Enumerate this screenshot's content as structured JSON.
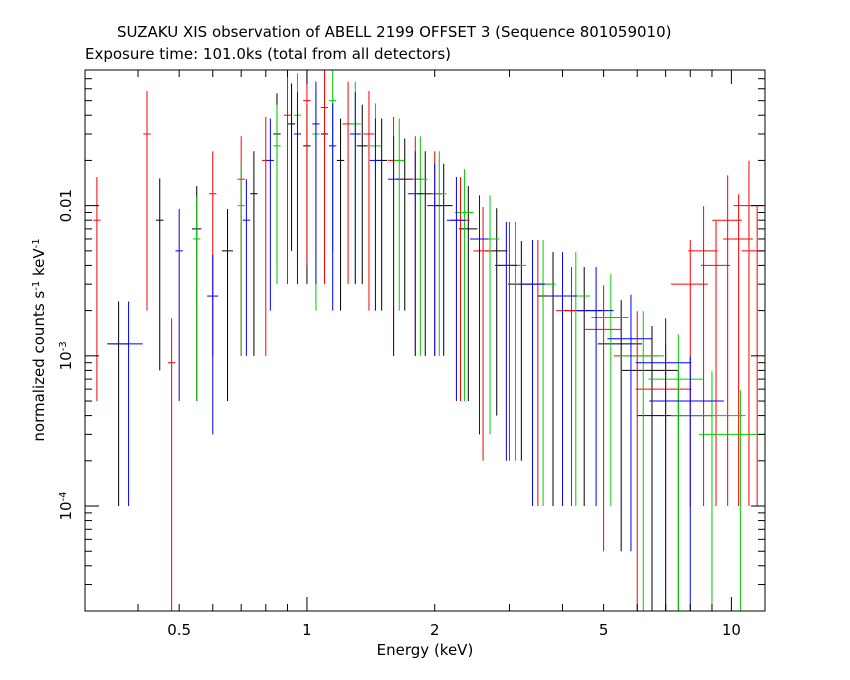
{
  "header": {
    "title": "SUZAKU XIS observation of ABELL 2199 OFFSET 3 (Sequence 801059010)",
    "subtitle": "Exposure time: 101.0ks (total from all detectors)"
  },
  "chart_data": {
    "type": "scatter",
    "title": "SUZAKU XIS observation of ABELL 2199 OFFSET 3 (Sequence 801059010)",
    "subtitle": "Exposure time: 101.0ks (total from all detectors)",
    "xlabel": "Energy (keV)",
    "ylabel": "normalized counts s^-1 keV^-1",
    "xscale": "log",
    "yscale": "log",
    "xlim": [
      0.3,
      12
    ],
    "ylim": [
      2e-05,
      0.08
    ],
    "x_ticks": [
      {
        "value": 0.5,
        "label": "0.5"
      },
      {
        "value": 1,
        "label": "1"
      },
      {
        "value": 2,
        "label": "2"
      },
      {
        "value": 5,
        "label": "5"
      },
      {
        "value": 10,
        "label": "10"
      }
    ],
    "y_ticks": [
      {
        "value": 0.0001,
        "label": "10^-4"
      },
      {
        "value": 0.001,
        "label": "10^-3"
      },
      {
        "value": 0.01,
        "label": "0.01"
      }
    ],
    "series": [
      {
        "color": "#000000",
        "points": [
          [
            0.36,
            0.0012,
            0.06,
            0.0011
          ],
          [
            0.45,
            0.008,
            0.02,
            0.0072
          ],
          [
            0.55,
            0.007,
            0.025,
            0.0065
          ],
          [
            0.65,
            0.005,
            0.03,
            0.0045
          ],
          [
            0.75,
            0.012,
            0.02,
            0.011
          ],
          [
            0.85,
            0.03,
            0.02,
            0.026
          ],
          [
            0.92,
            0.035,
            0.02,
            0.03
          ],
          [
            1.0,
            0.025,
            0.02,
            0.022
          ],
          [
            1.1,
            0.03,
            0.02,
            0.027
          ],
          [
            1.2,
            0.02,
            0.02,
            0.018
          ],
          [
            1.35,
            0.025,
            0.03,
            0.022
          ],
          [
            1.5,
            0.02,
            0.03,
            0.018
          ],
          [
            1.7,
            0.015,
            0.04,
            0.013
          ],
          [
            1.9,
            0.012,
            0.04,
            0.011
          ],
          [
            2.1,
            0.01,
            0.05,
            0.009
          ],
          [
            2.4,
            0.007,
            0.05,
            0.0065
          ],
          [
            2.8,
            0.005,
            0.06,
            0.0046
          ],
          [
            3.2,
            0.003,
            0.07,
            0.0028
          ],
          [
            3.8,
            0.0025,
            0.08,
            0.0024
          ],
          [
            4.5,
            0.002,
            0.1,
            0.0019
          ],
          [
            5.5,
            0.0012,
            0.12,
            0.00115
          ],
          [
            6.5,
            0.0008,
            0.15,
            0.00078
          ],
          [
            7.5,
            0.0004,
            0.2,
            0.00039
          ]
        ]
      },
      {
        "color": "#ff0000",
        "points": [
          [
            0.32,
            0.008,
            0.02,
            0.0075
          ],
          [
            0.42,
            0.03,
            0.02,
            0.028
          ],
          [
            0.48,
            0.0009,
            0.02,
            0.00088
          ],
          [
            0.6,
            0.012,
            0.02,
            0.011
          ],
          [
            0.7,
            0.015,
            0.02,
            0.014
          ],
          [
            0.8,
            0.02,
            0.02,
            0.019
          ],
          [
            0.9,
            0.04,
            0.02,
            0.037
          ],
          [
            1.0,
            0.05,
            0.02,
            0.046
          ],
          [
            1.1,
            0.045,
            0.02,
            0.042
          ],
          [
            1.25,
            0.035,
            0.03,
            0.032
          ],
          [
            1.4,
            0.03,
            0.03,
            0.028
          ],
          [
            1.6,
            0.02,
            0.03,
            0.019
          ],
          [
            1.8,
            0.015,
            0.04,
            0.014
          ],
          [
            2.0,
            0.012,
            0.04,
            0.011
          ],
          [
            2.3,
            0.008,
            0.05,
            0.0075
          ],
          [
            2.6,
            0.005,
            0.05,
            0.0048
          ],
          [
            3.0,
            0.004,
            0.06,
            0.0038
          ],
          [
            3.5,
            0.003,
            0.07,
            0.0029
          ],
          [
            4.2,
            0.002,
            0.08,
            0.0019
          ],
          [
            5.0,
            0.0015,
            0.1,
            0.00145
          ],
          [
            6.0,
            0.001,
            0.12,
            0.00098
          ],
          [
            7.0,
            0.0006,
            0.15,
            0.00059
          ],
          [
            8.0,
            0.003,
            0.1,
            0.0029
          ],
          [
            8.6,
            0.005,
            0.08,
            0.0049
          ],
          [
            9.2,
            0.004,
            0.08,
            0.0039
          ],
          [
            9.8,
            0.008,
            0.08,
            0.0079
          ],
          [
            10.4,
            0.006,
            0.08,
            0.0059
          ],
          [
            11.0,
            0.01,
            0.08,
            0.0099
          ],
          [
            11.5,
            0.005,
            0.08,
            0.0049
          ]
        ]
      },
      {
        "color": "#00cc00",
        "points": [
          [
            0.55,
            0.006,
            0.02,
            0.0055
          ],
          [
            0.7,
            0.01,
            0.02,
            0.009
          ],
          [
            0.85,
            0.025,
            0.02,
            0.022
          ],
          [
            0.95,
            0.04,
            0.02,
            0.036
          ],
          [
            1.05,
            0.03,
            0.02,
            0.028
          ],
          [
            1.15,
            0.05,
            0.02,
            0.045
          ],
          [
            1.3,
            0.035,
            0.03,
            0.032
          ],
          [
            1.45,
            0.025,
            0.03,
            0.023
          ],
          [
            1.65,
            0.02,
            0.03,
            0.018
          ],
          [
            1.85,
            0.015,
            0.04,
            0.014
          ],
          [
            2.05,
            0.012,
            0.04,
            0.011
          ],
          [
            2.35,
            0.009,
            0.05,
            0.0085
          ],
          [
            2.7,
            0.006,
            0.05,
            0.0057
          ],
          [
            3.1,
            0.004,
            0.06,
            0.0038
          ],
          [
            3.6,
            0.003,
            0.07,
            0.0029
          ],
          [
            4.3,
            0.0025,
            0.08,
            0.0024
          ],
          [
            5.2,
            0.0018,
            0.1,
            0.0017
          ],
          [
            6.2,
            0.001,
            0.12,
            0.00098
          ],
          [
            7.5,
            0.0007,
            0.15,
            0.00069
          ],
          [
            9.0,
            0.0004,
            0.2,
            0.00039
          ],
          [
            10.5,
            0.0003,
            0.2,
            0.00029
          ]
        ]
      },
      {
        "color": "#0000ff",
        "points": [
          [
            0.38,
            0.0012,
            0.08,
            0.0011
          ],
          [
            0.5,
            0.005,
            0.02,
            0.0045
          ],
          [
            0.6,
            0.0025,
            0.03,
            0.0022
          ],
          [
            0.72,
            0.008,
            0.02,
            0.007
          ],
          [
            0.82,
            0.02,
            0.02,
            0.018
          ],
          [
            0.95,
            0.03,
            0.02,
            0.027
          ],
          [
            1.05,
            0.035,
            0.02,
            0.032
          ],
          [
            1.15,
            0.025,
            0.02,
            0.023
          ],
          [
            1.3,
            0.03,
            0.03,
            0.027
          ],
          [
            1.45,
            0.02,
            0.03,
            0.018
          ],
          [
            1.6,
            0.015,
            0.03,
            0.014
          ],
          [
            1.8,
            0.012,
            0.04,
            0.011
          ],
          [
            2.0,
            0.01,
            0.04,
            0.009
          ],
          [
            2.25,
            0.008,
            0.05,
            0.0075
          ],
          [
            2.55,
            0.006,
            0.05,
            0.0057
          ],
          [
            2.95,
            0.004,
            0.06,
            0.0038
          ],
          [
            3.4,
            0.003,
            0.07,
            0.0029
          ],
          [
            4.0,
            0.0025,
            0.08,
            0.0024
          ],
          [
            4.8,
            0.002,
            0.1,
            0.0019
          ],
          [
            5.8,
            0.0013,
            0.12,
            0.00125
          ],
          [
            7.0,
            0.0009,
            0.15,
            0.00088
          ],
          [
            8.0,
            0.0005,
            0.2,
            0.00049
          ]
        ]
      }
    ],
    "grid": false,
    "legend": "none"
  }
}
